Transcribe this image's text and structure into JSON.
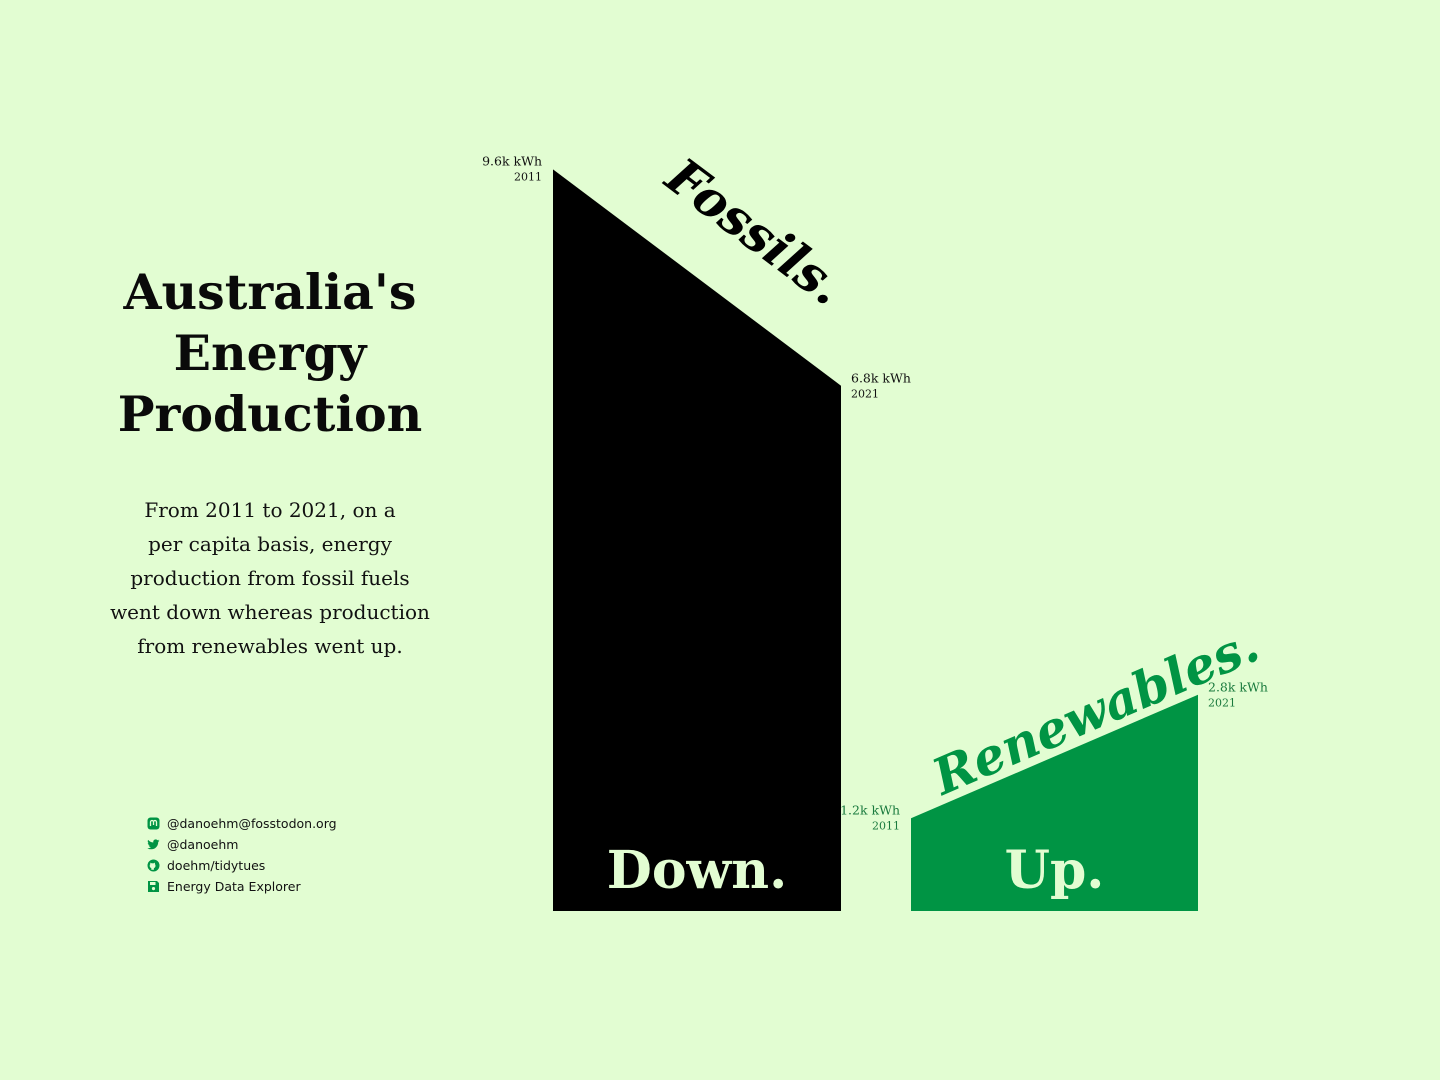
{
  "title_lines": [
    "Australia's",
    "Energy",
    "Production"
  ],
  "description_lines": [
    "From 2011 to 2021, on a",
    "per capita basis, energy",
    "production from fossil fuels",
    "went down whereas production",
    "from renewables went up."
  ],
  "social": [
    {
      "icon": "mastodon-icon",
      "text": "@danoehm@fosstodon.org"
    },
    {
      "icon": "twitter-icon",
      "text": "@danoehm"
    },
    {
      "icon": "github-icon",
      "text": "doehm/tidytues"
    },
    {
      "icon": "floppy-disk-icon",
      "text": "Energy Data Explorer"
    }
  ],
  "colors": {
    "background": "#e2fdd2",
    "fossils": "#000000",
    "renewables": "#009444",
    "social_icons": "#009444"
  },
  "chart_data": {
    "type": "area",
    "unit": "kWh",
    "x": [
      2011,
      2021
    ],
    "series": [
      {
        "name": "Fossils.",
        "direction": "Down.",
        "values": [
          9600,
          6800
        ],
        "value_labels": [
          "9.6k kWh",
          "6.8k kWh"
        ],
        "year_labels": [
          "2011",
          "2021"
        ],
        "color": "#000000"
      },
      {
        "name": "Renewables.",
        "direction": "Up.",
        "values": [
          1200,
          2800
        ],
        "value_labels": [
          "1.2k kWh",
          "2.8k kWh"
        ],
        "year_labels": [
          "2011",
          "2021"
        ],
        "color": "#009444"
      }
    ]
  }
}
